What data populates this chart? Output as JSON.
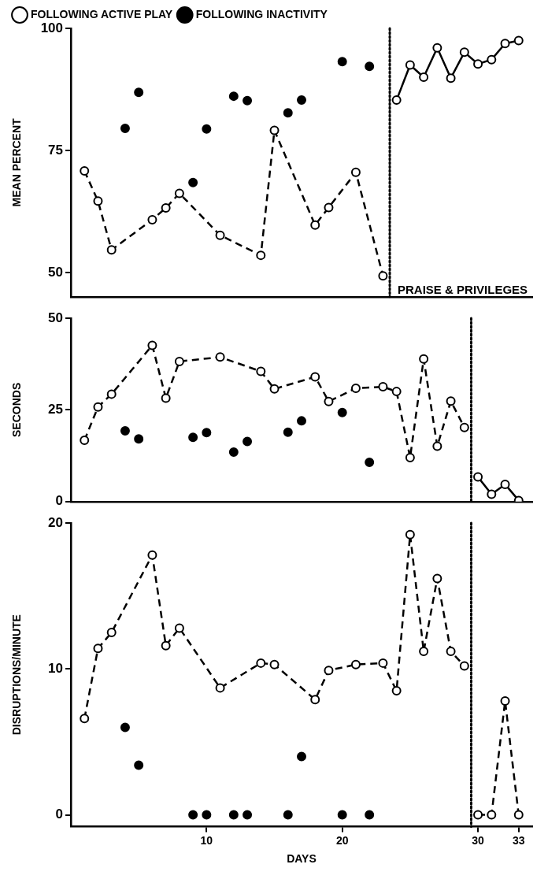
{
  "chart_data": [
    {
      "type": "line",
      "ylabel": "MEAN PERCENT",
      "xlim": [
        0,
        34
      ],
      "ylim": [
        45,
        100
      ],
      "yticks": [
        50,
        75,
        100
      ],
      "tick_labels": "y",
      "grid": false,
      "legend": "top left",
      "marker": "circle",
      "ref_lines": [
        {
          "axis": "x",
          "value": 23.5,
          "color": "#000000",
          "line_style": "dotted"
        }
      ],
      "annotations": [
        "PRAISE & PRIVILEGES"
      ],
      "series": [
        {
          "name": "FOLLOWING ACTIVE PLAY",
          "line_style": "dashed",
          "color": "#000000",
          "x": [
            1,
            2,
            3,
            6,
            7,
            8,
            11,
            14,
            15,
            18,
            19,
            21,
            23
          ],
          "values": [
            70.8,
            64.6,
            54.6,
            60.8,
            63.2,
            66.2,
            57.6,
            53.5,
            79.1,
            59.7,
            63.3,
            70.5,
            49.3
          ]
        },
        {
          "name": "FOLLOWING INACTIVITY",
          "type": "scatter",
          "color": "#000000",
          "x": [
            4,
            5,
            9,
            10,
            12,
            13,
            16,
            17,
            20,
            22
          ],
          "values": [
            79.5,
            86.9,
            68.4,
            79.4,
            86.1,
            85.2,
            82.7,
            85.3,
            93.2,
            92.2
          ]
        },
        {
          "line_style": "solid",
          "color": "#000000",
          "x": [
            24,
            25,
            26,
            27,
            28,
            29,
            30,
            31,
            32,
            33
          ],
          "values": [
            85.3,
            92.5,
            90.0,
            96.0,
            89.8,
            95.1,
            92.7,
            93.6,
            96.9,
            97.5
          ]
        }
      ]
    },
    {
      "type": "line",
      "ylabel": "SECONDS",
      "xlim": [
        0,
        34
      ],
      "ylim": [
        0,
        50
      ],
      "yticks": [
        0,
        25,
        50
      ],
      "tick_labels": "y",
      "grid": false,
      "marker": "circle",
      "ref_lines": [
        {
          "axis": "x",
          "value": 29.5,
          "color": "#000000",
          "line_style": "dotted"
        }
      ],
      "series": [
        {
          "line_style": "dashed",
          "color": "#000000",
          "x": [
            1,
            2,
            3,
            6,
            7,
            8,
            11,
            14,
            15,
            18,
            19,
            21,
            23,
            24,
            25,
            26,
            27,
            28,
            29
          ],
          "values": [
            16.7,
            25.8,
            29.3,
            42.6,
            28.2,
            38.2,
            39.4,
            35.5,
            30.7,
            34.0,
            27.3,
            30.9,
            31.3,
            30.0,
            12.0,
            38.9,
            15.1,
            27.4,
            20.2
          ]
        },
        {
          "type": "scatter",
          "color": "#000000",
          "x": [
            4,
            5,
            9,
            10,
            12,
            13,
            16,
            17,
            20,
            22
          ],
          "values": [
            19.3,
            17.1,
            17.5,
            18.8,
            13.5,
            16.4,
            18.9,
            22.0,
            24.3,
            10.7
          ]
        },
        {
          "line_style": "solid",
          "color": "#000000",
          "x": [
            30,
            31,
            32,
            33
          ],
          "values": [
            6.7,
            2.0,
            4.7,
            0.3
          ]
        }
      ]
    },
    {
      "type": "line",
      "ylabel": "DISRUPTIONS/MINUTE",
      "xlabel": "DAYS",
      "xlim": [
        0,
        34
      ],
      "xticks": [
        10,
        20,
        30,
        33
      ],
      "ylim": [
        -0.8,
        20
      ],
      "yticks": [
        0,
        10,
        20
      ],
      "grid": false,
      "marker": "circle",
      "ref_lines": [
        {
          "axis": "x",
          "value": 29.5,
          "color": "#000000",
          "line_style": "dotted"
        }
      ],
      "series": [
        {
          "line_style": "dashed",
          "color": "#000000",
          "x": [
            1,
            2,
            3,
            6,
            7,
            8,
            11,
            14,
            15,
            18,
            19,
            21,
            23,
            24,
            25,
            26,
            27,
            28,
            29
          ],
          "values": [
            6.6,
            11.4,
            12.5,
            17.8,
            11.6,
            12.8,
            8.7,
            10.4,
            10.3,
            7.9,
            9.9,
            10.3,
            10.4,
            8.5,
            19.2,
            11.2,
            16.2,
            11.2,
            10.2
          ]
        },
        {
          "type": "scatter",
          "color": "#000000",
          "x": [
            4,
            5,
            9,
            10,
            12,
            13,
            16,
            17,
            20,
            22
          ],
          "values": [
            6.0,
            3.4,
            0,
            0,
            0,
            0,
            0,
            4.0,
            0,
            0
          ]
        },
        {
          "line_style": "dashed",
          "color": "#000000",
          "x": [
            30,
            31,
            32,
            33
          ],
          "values": [
            0,
            0,
            7.8,
            0
          ]
        }
      ]
    }
  ]
}
